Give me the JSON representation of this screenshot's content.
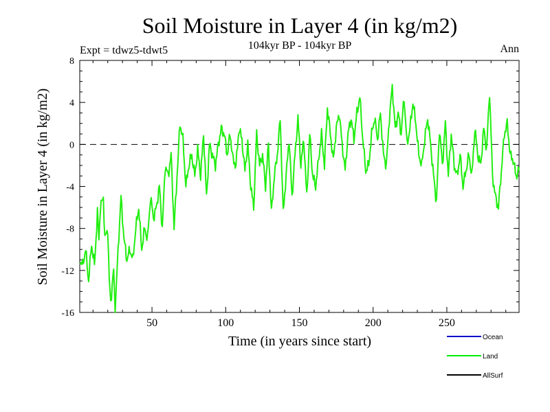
{
  "chart_data": {
    "type": "line",
    "title": "Soil Moisture in Layer 4 (in kg/m2)",
    "subtitle": "104kyr BP - 104kyr BP",
    "experiment_label": "Expt = tdwz5-tdwt5",
    "period_label": "Ann",
    "xlabel": "Time (in years since start)",
    "ylabel": "Soil Moisture in Layer 4 (in kg/m2)",
    "xlim": [
      1,
      299
    ],
    "ylim": [
      -16,
      8
    ],
    "x_ticks": [
      50,
      100,
      150,
      200,
      250
    ],
    "x_tick_labels": [
      "50",
      "100",
      "150",
      "200",
      "250"
    ],
    "y_ticks": [
      -16,
      -12,
      -8,
      -4,
      0,
      4,
      8
    ],
    "y_tick_labels": [
      "-16",
      "-12",
      "-8",
      "-4",
      "0",
      "4",
      "8"
    ],
    "zero_line": true,
    "legend": {
      "placement": "bottom-right",
      "entries": [
        {
          "name": "Ocean",
          "color": "#0000cc"
        },
        {
          "name": "Land",
          "color": "#00ee00"
        },
        {
          "name": "AllSurf",
          "color": "#000000"
        }
      ]
    },
    "series": [
      {
        "name": "Land",
        "color": "#22ee11",
        "anchors": [
          [
            1,
            -11
          ],
          [
            3,
            -11.5
          ],
          [
            5,
            -10
          ],
          [
            7,
            -13
          ],
          [
            9,
            -9.5
          ],
          [
            11,
            -11.5
          ],
          [
            13,
            -6.5
          ],
          [
            14,
            -9
          ],
          [
            15,
            -6
          ],
          [
            17,
            -5
          ],
          [
            18,
            -9
          ],
          [
            20,
            -8
          ],
          [
            21,
            -13
          ],
          [
            22,
            -15
          ],
          [
            24,
            -12
          ],
          [
            25,
            -16
          ],
          [
            27,
            -10
          ],
          [
            29,
            -5
          ],
          [
            31,
            -9
          ],
          [
            33,
            -11
          ],
          [
            35,
            -10
          ],
          [
            37,
            -11
          ],
          [
            39,
            -8
          ],
          [
            41,
            -6
          ],
          [
            43,
            -10
          ],
          [
            45,
            -8
          ],
          [
            47,
            -9
          ],
          [
            49,
            -5
          ],
          [
            51,
            -7
          ],
          [
            53,
            -6
          ],
          [
            55,
            -4
          ],
          [
            57,
            -8
          ],
          [
            59,
            -2
          ],
          [
            61,
            -3
          ],
          [
            63,
            -1
          ],
          [
            65,
            -8
          ],
          [
            67,
            -3
          ],
          [
            69,
            2
          ],
          [
            71,
            0.5
          ],
          [
            73,
            -4
          ],
          [
            75,
            -2
          ],
          [
            77,
            -1
          ],
          [
            79,
            -3
          ],
          [
            81,
            -0.5
          ],
          [
            83,
            -3
          ],
          [
            85,
            1
          ],
          [
            87,
            -5
          ],
          [
            89,
            0
          ],
          [
            91,
            -1
          ],
          [
            93,
            -2
          ],
          [
            95,
            0
          ],
          [
            97,
            1.5
          ],
          [
            99,
            1
          ],
          [
            101,
            -1
          ],
          [
            103,
            1
          ],
          [
            105,
            -1.5
          ],
          [
            107,
            -2
          ],
          [
            109,
            1.5
          ],
          [
            111,
            0.5
          ],
          [
            113,
            -2.5
          ],
          [
            115,
            0
          ],
          [
            117,
            -4
          ],
          [
            119,
            -6
          ],
          [
            121,
            1
          ],
          [
            123,
            -2
          ],
          [
            125,
            -1
          ],
          [
            127,
            -4
          ],
          [
            129,
            0
          ],
          [
            131,
            -6.5
          ],
          [
            133,
            -3
          ],
          [
            135,
            -1
          ],
          [
            137,
            2.5
          ],
          [
            139,
            -6.5
          ],
          [
            141,
            -3
          ],
          [
            143,
            0.5
          ],
          [
            145,
            -5
          ],
          [
            147,
            -1
          ],
          [
            149,
            2.5
          ],
          [
            151,
            -2
          ],
          [
            153,
            0.5
          ],
          [
            155,
            -5
          ],
          [
            157,
            1
          ],
          [
            159,
            -3
          ],
          [
            161,
            -4
          ],
          [
            163,
            -1.5
          ],
          [
            165,
            1
          ],
          [
            167,
            -2
          ],
          [
            169,
            3.5
          ],
          [
            171,
            1
          ],
          [
            173,
            -1.5
          ],
          [
            175,
            1.5
          ],
          [
            177,
            3
          ],
          [
            179,
            0
          ],
          [
            181,
            -2.5
          ],
          [
            183,
            1
          ],
          [
            185,
            2.5
          ],
          [
            187,
            0.5
          ],
          [
            189,
            3
          ],
          [
            191,
            4.5
          ],
          [
            193,
            0.5
          ],
          [
            195,
            -2.5
          ],
          [
            197,
            -2
          ],
          [
            199,
            1
          ],
          [
            201,
            2.5
          ],
          [
            203,
            0.5
          ],
          [
            205,
            3
          ],
          [
            207,
            -1
          ],
          [
            209,
            -2
          ],
          [
            211,
            2.5
          ],
          [
            213,
            5.5
          ],
          [
            215,
            1.5
          ],
          [
            217,
            3
          ],
          [
            219,
            1
          ],
          [
            221,
            4.5
          ],
          [
            223,
            0
          ],
          [
            225,
            1.5
          ],
          [
            227,
            4
          ],
          [
            229,
            2
          ],
          [
            231,
            -1
          ],
          [
            233,
            -2
          ],
          [
            235,
            0.5
          ],
          [
            237,
            2.5
          ],
          [
            239,
            0
          ],
          [
            241,
            -3
          ],
          [
            243,
            -5.5
          ],
          [
            245,
            1.5
          ],
          [
            247,
            -2
          ],
          [
            249,
            2
          ],
          [
            251,
            -3
          ],
          [
            253,
            1
          ],
          [
            255,
            -2
          ],
          [
            257,
            -3
          ],
          [
            259,
            -1
          ],
          [
            261,
            -4
          ],
          [
            263,
            -2.5
          ],
          [
            265,
            -1
          ],
          [
            267,
            -3
          ],
          [
            269,
            1.5
          ],
          [
            271,
            -1
          ],
          [
            273,
            -2
          ],
          [
            275,
            1.5
          ],
          [
            277,
            -0.5
          ],
          [
            279,
            5
          ],
          [
            281,
            -3
          ],
          [
            283,
            -5
          ],
          [
            285,
            -6
          ],
          [
            287,
            -2.5
          ],
          [
            289,
            1
          ],
          [
            291,
            2
          ],
          [
            293,
            -1
          ],
          [
            295,
            -1.5
          ],
          [
            297,
            -3
          ],
          [
            299,
            -2.5
          ]
        ]
      }
    ]
  }
}
